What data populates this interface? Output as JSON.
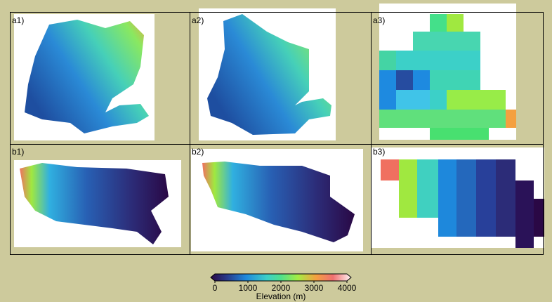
{
  "panels": [
    {
      "label": "a1)"
    },
    {
      "label": "a2)"
    },
    {
      "label": "a3)"
    },
    {
      "label": "b1)"
    },
    {
      "label": "b2)"
    },
    {
      "label": "b3)"
    }
  ],
  "colorbar": {
    "label": "Elevation (m)",
    "lim": [
      0,
      4000
    ],
    "ticks": [
      0,
      1000,
      2000,
      3000,
      4000
    ]
  }
}
